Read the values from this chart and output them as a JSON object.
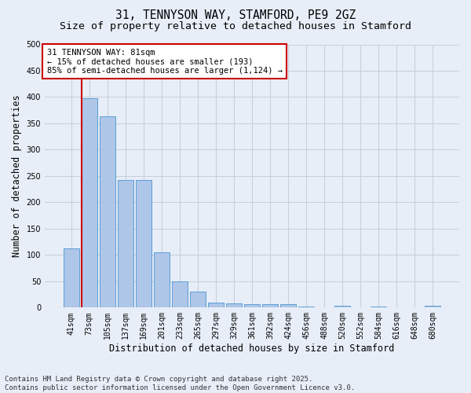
{
  "title_line1": "31, TENNYSON WAY, STAMFORD, PE9 2GZ",
  "title_line2": "Size of property relative to detached houses in Stamford",
  "xlabel": "Distribution of detached houses by size in Stamford",
  "ylabel": "Number of detached properties",
  "categories": [
    "41sqm",
    "73sqm",
    "105sqm",
    "137sqm",
    "169sqm",
    "201sqm",
    "233sqm",
    "265sqm",
    "297sqm",
    "329sqm",
    "361sqm",
    "392sqm",
    "424sqm",
    "456sqm",
    "488sqm",
    "520sqm",
    "552sqm",
    "584sqm",
    "616sqm",
    "648sqm",
    "680sqm"
  ],
  "values": [
    112,
    398,
    363,
    242,
    242,
    105,
    50,
    30,
    10,
    8,
    6,
    7,
    7,
    2,
    0,
    4,
    0,
    2,
    0,
    0,
    4
  ],
  "bar_color": "#aec6e8",
  "bar_edge_color": "#5a9fd4",
  "vline_color": "#cc0000",
  "vline_pos": 0.575,
  "annotation_text": "31 TENNYSON WAY: 81sqm\n← 15% of detached houses are smaller (193)\n85% of semi-detached houses are larger (1,124) →",
  "annotation_box_color": "#ffffff",
  "annotation_box_edge": "#cc0000",
  "ylim": [
    0,
    500
  ],
  "grid_color": "#c8d0dc",
  "bg_color": "#e8eef8",
  "footer_line1": "Contains HM Land Registry data © Crown copyright and database right 2025.",
  "footer_line2": "Contains public sector information licensed under the Open Government Licence v3.0.",
  "title_fontsize": 10.5,
  "subtitle_fontsize": 9.5,
  "axis_label_fontsize": 8.5,
  "tick_fontsize": 7,
  "annotation_fontsize": 7.5,
  "footer_fontsize": 6.5
}
